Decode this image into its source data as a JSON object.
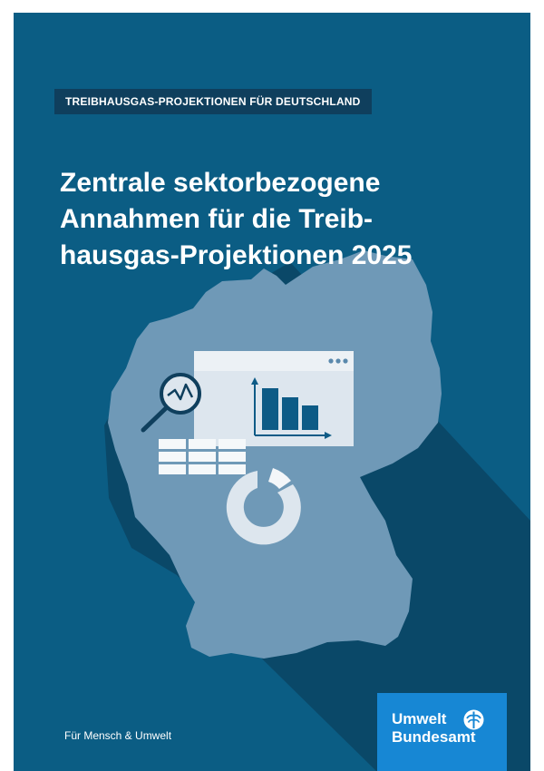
{
  "series": {
    "label": "TREIBHAUSGAS-PROJEKTIONEN FÜR DEUTSCHLAND"
  },
  "title": {
    "lines": [
      "Zentrale sektorbezogene",
      "Annahmen für die Treib-",
      "hausgas-Projektionen 2025"
    ]
  },
  "tagline": "Für Mensch & Umwelt",
  "publisher": {
    "line1": "Umwelt",
    "line2": "Bundesamt"
  },
  "icons": [
    "map-germany-icon",
    "magnifier-chart-icon",
    "browser-window-icon",
    "bar-chart-icon",
    "table-icon",
    "donut-chart-icon",
    "ellipsis-icon",
    "umweltbundesamt-logo-icon"
  ],
  "colors": {
    "background": "#0b5d84",
    "badge": "#0f3f5d",
    "map": "#6f99b7",
    "shadow": "#0a4868",
    "illustration": "#dde6ee",
    "chart_bars": "#0d5b86",
    "logo": "#1787d4"
  }
}
